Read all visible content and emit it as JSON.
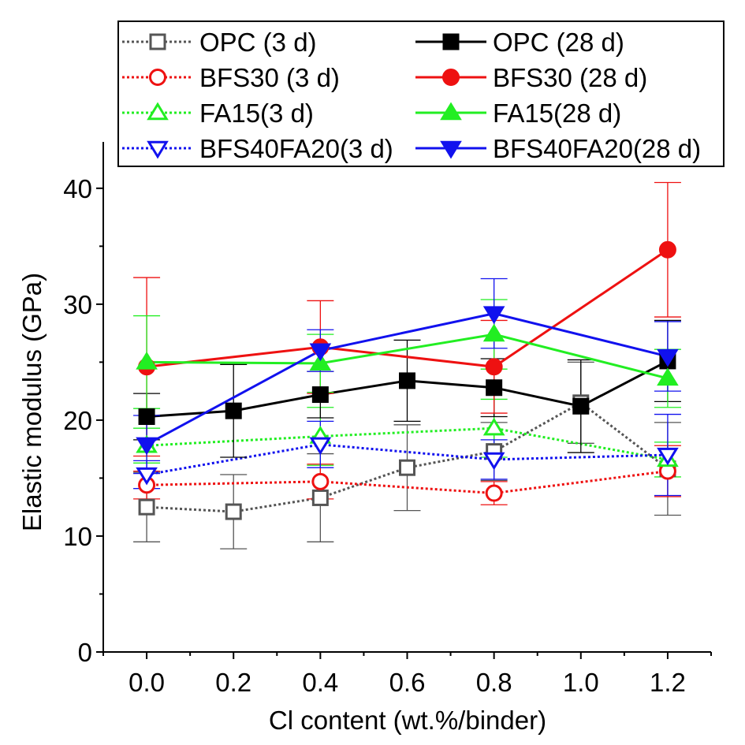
{
  "chart_data": {
    "type": "line",
    "title": "",
    "xlabel": "Cl content (wt.%/binder)",
    "ylabel": "Elastic modulus (GPa)",
    "xlim": [
      -0.1,
      1.3
    ],
    "ylim": [
      0,
      44
    ],
    "x_ticks": [
      0.0,
      0.2,
      0.4,
      0.6,
      0.8,
      1.0,
      1.2
    ],
    "x_tick_labels": [
      "0.0",
      "0.2",
      "0.4",
      "0.6",
      "0.8",
      "1.0",
      "1.2"
    ],
    "y_ticks": [
      0,
      10,
      20,
      30,
      40
    ],
    "y_tick_labels": [
      "0",
      "10",
      "20",
      "30",
      "40"
    ],
    "grid": false,
    "legend_position": "top",
    "series": [
      {
        "name": "OPC (3 d)",
        "color": "#555555",
        "dash": "dotted",
        "marker": "square",
        "filled": false,
        "x": [
          0.0,
          0.2,
          0.4,
          0.6,
          0.8,
          1.0,
          1.2
        ],
        "y": [
          12.5,
          12.1,
          13.3,
          15.9,
          17.3,
          21.5,
          15.8
        ],
        "err": [
          3.0,
          3.2,
          3.8,
          3.7,
          2.5,
          3.5,
          4.0
        ]
      },
      {
        "name": "BFS30 (3 d)",
        "color": "#ee1111",
        "dash": "dotted",
        "marker": "circle",
        "filled": false,
        "x": [
          0.0,
          0.4,
          0.8,
          1.2
        ],
        "y": [
          14.4,
          14.7,
          13.7,
          15.6
        ],
        "err": [
          1.2,
          1.5,
          1.0,
          2.2
        ]
      },
      {
        "name": "FA15(3 d)",
        "color": "#22ee22",
        "dash": "dotted",
        "marker": "triangle-up",
        "filled": false,
        "x": [
          0.0,
          0.4,
          0.8,
          1.2
        ],
        "y": [
          17.8,
          18.6,
          19.3,
          16.6
        ],
        "err": [
          1.5,
          2.5,
          2.5,
          1.5
        ]
      },
      {
        "name": "BFS40FA20(3 d)",
        "color": "#1111ee",
        "dash": "dotted",
        "marker": "triangle-down",
        "filled": false,
        "x": [
          0.0,
          0.4,
          0.8,
          1.2
        ],
        "y": [
          15.3,
          17.9,
          16.6,
          17.0
        ],
        "err": [
          1.2,
          2.0,
          1.7,
          3.5
        ]
      },
      {
        "name": "OPC (28 d)",
        "color": "#000000",
        "dash": "solid",
        "marker": "square",
        "filled": true,
        "x": [
          0.0,
          0.2,
          0.4,
          0.6,
          0.8,
          1.0,
          1.2
        ],
        "y": [
          20.3,
          20.8,
          22.2,
          23.4,
          22.8,
          21.2,
          25.1
        ],
        "err": [
          2.0,
          4.0,
          2.0,
          3.5,
          2.5,
          4.0,
          3.5
        ]
      },
      {
        "name": "BFS30 (28 d)",
        "color": "#ee1111",
        "dash": "solid",
        "marker": "circle",
        "filled": true,
        "x": [
          0.0,
          0.4,
          0.8,
          1.2
        ],
        "y": [
          24.6,
          26.3,
          24.6,
          34.7
        ],
        "err": [
          7.7,
          4.0,
          4.0,
          5.8
        ]
      },
      {
        "name": "FA15(28 d)",
        "color": "#22ee22",
        "dash": "solid",
        "marker": "triangle-up",
        "filled": true,
        "x": [
          0.0,
          0.4,
          0.8,
          1.2
        ],
        "y": [
          25.0,
          24.9,
          27.4,
          23.6
        ],
        "err": [
          4.0,
          2.5,
          3.0,
          2.5
        ]
      },
      {
        "name": "BFS40FA20(28 d)",
        "color": "#1111ee",
        "dash": "solid",
        "marker": "triangle-down",
        "filled": true,
        "x": [
          0.0,
          0.4,
          0.8,
          1.2
        ],
        "y": [
          17.9,
          26.0,
          29.2,
          25.5
        ],
        "err": [
          2.5,
          1.8,
          3.0,
          3.0
        ]
      }
    ]
  }
}
